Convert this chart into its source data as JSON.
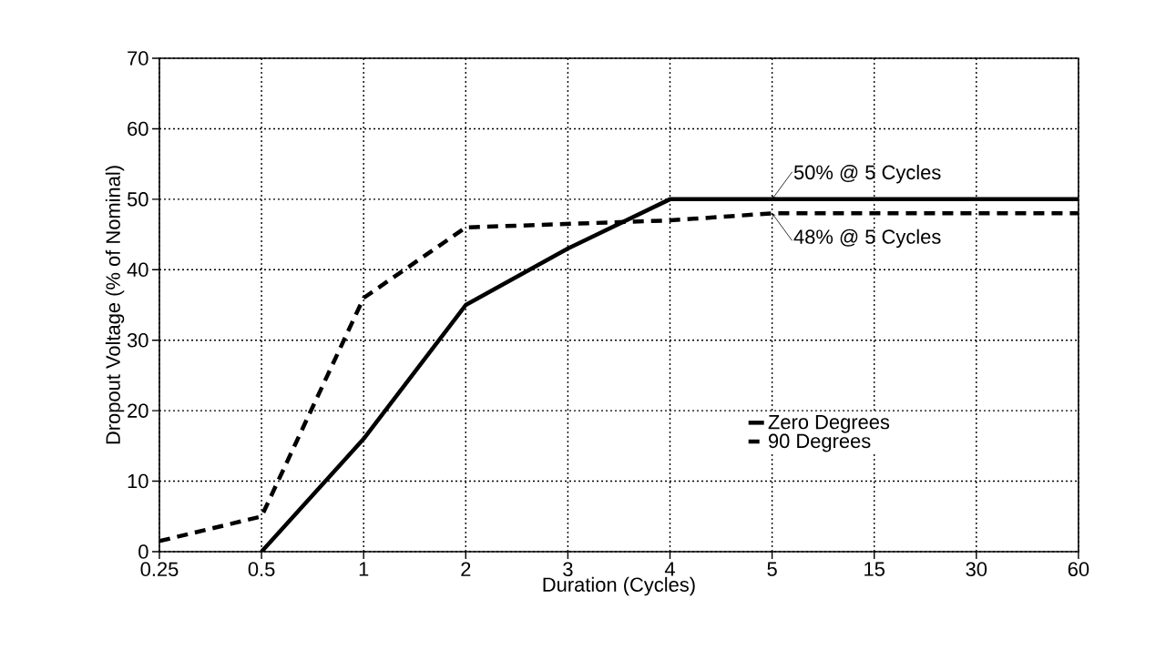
{
  "chart_data": {
    "type": "line",
    "xlabel": "Duration (Cycles)",
    "ylabel": "Dropout Voltage (% of Nominal)",
    "categories": [
      "0.25",
      "0.5",
      "1",
      "2",
      "3",
      "4",
      "5",
      "15",
      "30",
      "60"
    ],
    "series": [
      {
        "name": "Zero Degrees",
        "color": "#000000",
        "line_style": "solid",
        "values": [
          null,
          0,
          16,
          35,
          43,
          50,
          50,
          50,
          50,
          50
        ]
      },
      {
        "name": "90 Degrees",
        "color": "#000000",
        "line_style": "dashed",
        "values": [
          1.5,
          5,
          36,
          46,
          46.5,
          47,
          48,
          48,
          48,
          48
        ]
      }
    ],
    "ylim": [
      0,
      70
    ],
    "yticks": [
      0,
      10,
      20,
      30,
      40,
      50,
      60,
      70
    ],
    "grid": true,
    "legend": "bottom right",
    "marker": "none",
    "annotations": [
      {
        "text": "50% @ 5 Cycles",
        "x": "5",
        "y": 50
      },
      {
        "text": "48% @ 5 Cycles",
        "x": "5",
        "y": 48
      }
    ]
  }
}
